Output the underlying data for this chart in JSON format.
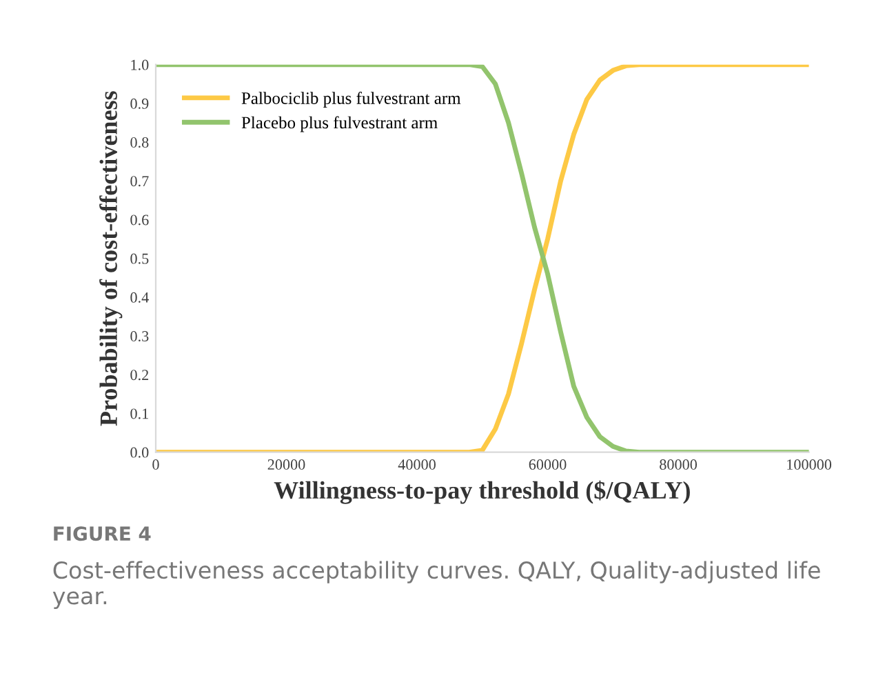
{
  "chart_data": {
    "type": "line",
    "xlabel": "Willingness-to-pay threshold ($/QALY)",
    "ylabel": "Probability of cost-effectiveness",
    "x": [
      0,
      48000,
      50000,
      52000,
      54000,
      56000,
      58000,
      60000,
      62000,
      64000,
      66000,
      68000,
      70000,
      72000,
      74000,
      100000
    ],
    "series": [
      {
        "name": "Palbociclib plus fulvestrant arm",
        "color": "#fdc945",
        "values": [
          0,
          0,
          0.005,
          0.06,
          0.15,
          0.28,
          0.42,
          0.55,
          0.7,
          0.82,
          0.91,
          0.96,
          0.985,
          0.997,
          1.0,
          1.0
        ]
      },
      {
        "name": "Placebo plus fulvestrant arm",
        "color": "#92c46d",
        "values": [
          1,
          1,
          0.995,
          0.95,
          0.85,
          0.72,
          0.58,
          0.46,
          0.31,
          0.17,
          0.09,
          0.04,
          0.015,
          0.003,
          0,
          0
        ]
      }
    ],
    "xlim": [
      0,
      100000
    ],
    "xticks": [
      0,
      20000,
      40000,
      60000,
      80000,
      100000
    ],
    "ylim": [
      0,
      1
    ],
    "yticks": [
      {
        "value": 0,
        "label": "0.0"
      },
      {
        "value": 0.1,
        "label": "0.1"
      },
      {
        "value": 0.2,
        "label": "0.2"
      },
      {
        "value": 0.3,
        "label": "0.3"
      },
      {
        "value": 0.4,
        "label": "0.4"
      },
      {
        "value": 0.5,
        "label": "0.5"
      },
      {
        "value": 0.6,
        "label": "0.6"
      },
      {
        "value": 0.7,
        "label": "0.7"
      },
      {
        "value": 0.8,
        "label": "0.8"
      },
      {
        "value": 0.9,
        "label": "0.9"
      },
      {
        "value": 1,
        "label": "1.0"
      }
    ],
    "grid": false,
    "legend": "top left",
    "marker": "none",
    "line_style": "solid",
    "annotations": [
      "FIGURE 4",
      "Cost-effectiveness acceptability curves. QALY, Quality-adjusted life year."
    ]
  }
}
